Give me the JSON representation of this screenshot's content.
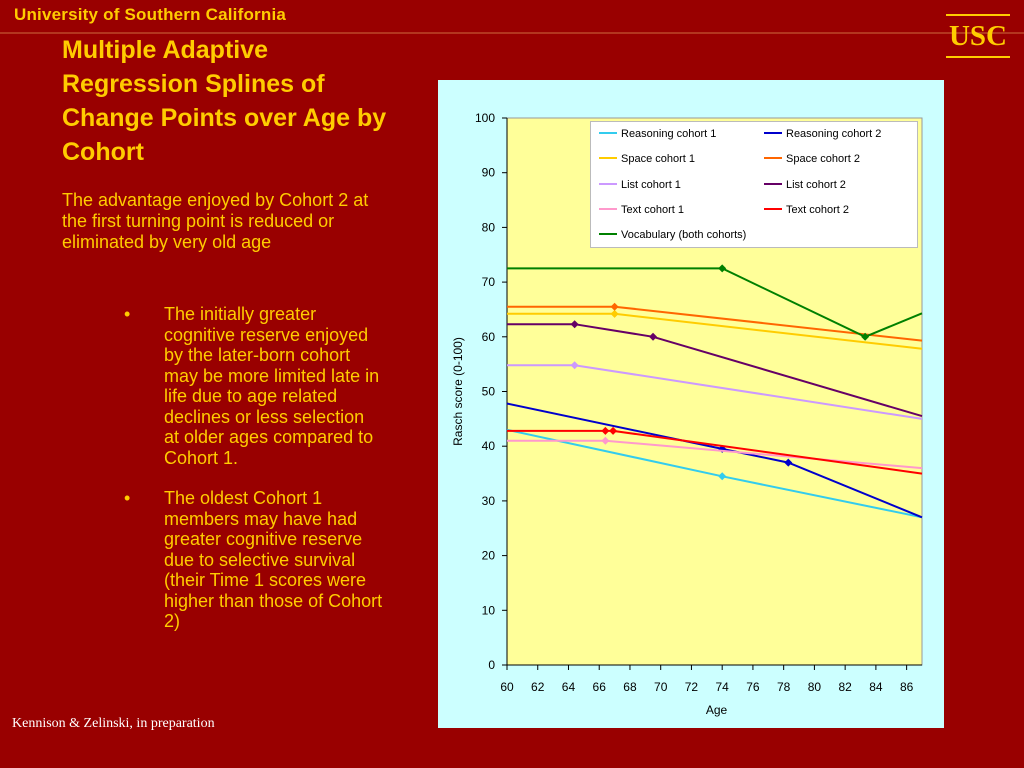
{
  "header": {
    "university": "University of Southern California",
    "logo_text": "USC"
  },
  "slide": {
    "title": "Multiple Adaptive Regression Splines of Change Points over Age by Cohort",
    "lead": "The advantage enjoyed by Cohort 2 at the first turning point is reduced or eliminated by very old age",
    "bullets": [
      "The initially greater cognitive reserve enjoyed by the later-born cohort may be more limited late in life due to age related declines or less selection at older ages compared to Cohort 1.",
      "The oldest Cohort 1 members may have had greater cognitive reserve due to selective survival (their Time 1 scores were higher than those of Cohort 2)"
    ],
    "citation": "Kennison & Zelinski, in preparation"
  },
  "colors": {
    "background": "#990000",
    "text_accent": "#ffcc00",
    "plot_area": "#ffff99",
    "chart_frame": "#ccffff"
  },
  "chart_data": {
    "type": "line",
    "xlabel": "Age",
    "ylabel": "Rasch score (0-100)",
    "xlim": [
      60,
      87
    ],
    "ylim": [
      0,
      100
    ],
    "x_ticks": [
      60,
      62,
      64,
      66,
      68,
      70,
      72,
      74,
      76,
      78,
      80,
      82,
      84,
      86
    ],
    "y_ticks": [
      0,
      10,
      20,
      30,
      40,
      50,
      60,
      70,
      80,
      90,
      100
    ],
    "legend_position": "top-right",
    "grid": false,
    "series": [
      {
        "name": "Reasoning cohort 1",
        "color": "#33ccee",
        "points": [
          [
            60,
            43
          ],
          [
            74,
            34.5
          ],
          [
            87,
            27
          ]
        ],
        "markers": [
          [
            74,
            34.5
          ]
        ]
      },
      {
        "name": "Reasoning cohort 2",
        "color": "#0000cc",
        "points": [
          [
            60,
            47.8
          ],
          [
            74,
            39.5
          ],
          [
            78.3,
            37
          ],
          [
            87,
            27
          ]
        ],
        "markers": [
          [
            74,
            39.5
          ],
          [
            78.3,
            37
          ]
        ]
      },
      {
        "name": "Space cohort 1",
        "color": "#ffcc00",
        "points": [
          [
            60,
            64.2
          ],
          [
            67,
            64.2
          ],
          [
            87,
            57.8
          ]
        ],
        "markers": [
          [
            67,
            64.2
          ]
        ]
      },
      {
        "name": "Space cohort 2",
        "color": "#ff6600",
        "points": [
          [
            60,
            65.5
          ],
          [
            67,
            65.5
          ],
          [
            87,
            59.3
          ]
        ],
        "markers": [
          [
            67,
            65.5
          ]
        ]
      },
      {
        "name": "List cohort 1",
        "color": "#cc99ff",
        "points": [
          [
            60,
            54.8
          ],
          [
            64.4,
            54.8
          ],
          [
            87,
            45
          ]
        ],
        "markers": [
          [
            64.4,
            54.8
          ]
        ]
      },
      {
        "name": "List cohort 2",
        "color": "#660066",
        "points": [
          [
            60,
            62.3
          ],
          [
            64.4,
            62.3
          ],
          [
            69.5,
            60
          ],
          [
            87,
            45.5
          ]
        ],
        "markers": [
          [
            64.4,
            62.3
          ],
          [
            69.5,
            60
          ]
        ]
      },
      {
        "name": "Text cohort 1",
        "color": "#ff99cc",
        "points": [
          [
            60,
            41
          ],
          [
            66.4,
            41
          ],
          [
            87,
            36
          ]
        ],
        "markers": [
          [
            66.4,
            41
          ]
        ]
      },
      {
        "name": "Text cohort 2",
        "color": "#ff0000",
        "points": [
          [
            60,
            42.8
          ],
          [
            66.9,
            42.8
          ],
          [
            87,
            35
          ]
        ],
        "markers": [
          [
            66.4,
            42.8
          ],
          [
            66.9,
            42.8
          ]
        ]
      },
      {
        "name": "Vocabulary (both cohorts)",
        "color": "#008000",
        "points": [
          [
            60,
            72.5
          ],
          [
            74,
            72.5
          ],
          [
            83.3,
            60
          ],
          [
            87,
            64.3
          ]
        ],
        "markers": [
          [
            74,
            72.5
          ],
          [
            83.3,
            60
          ]
        ]
      }
    ]
  }
}
